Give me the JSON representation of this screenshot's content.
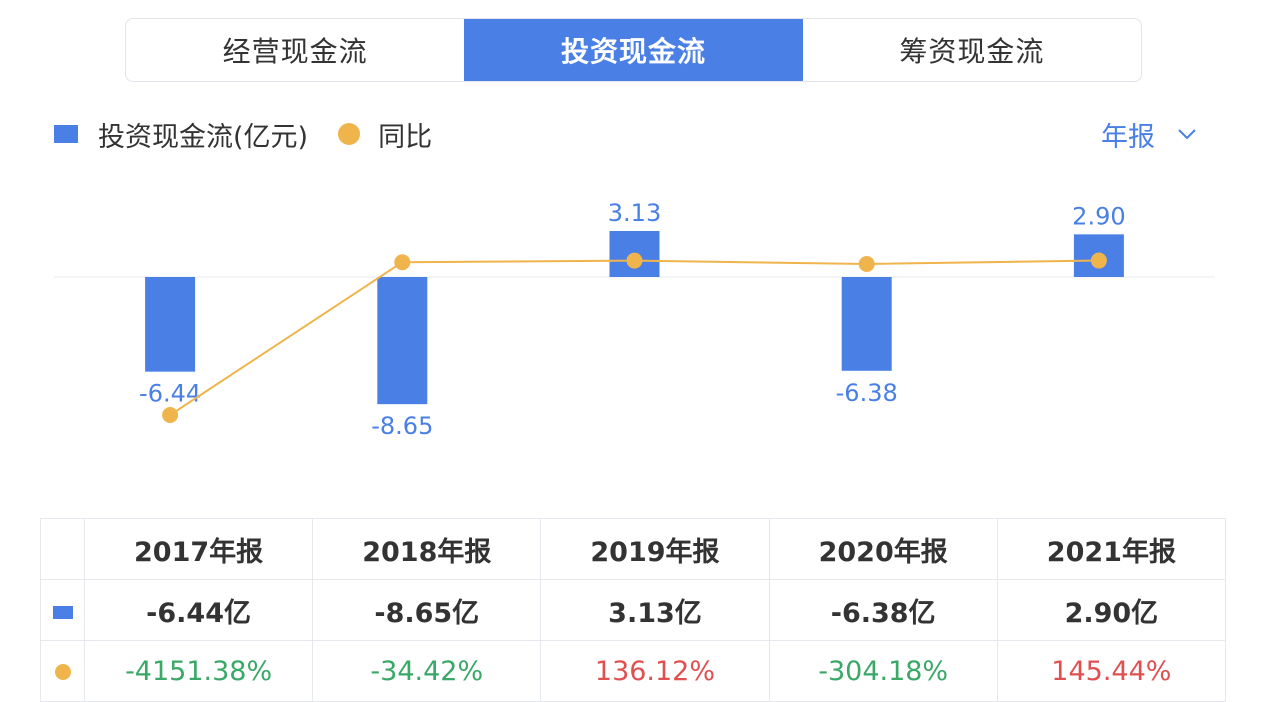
{
  "tabs": [
    {
      "label": "经营现金流",
      "active": false
    },
    {
      "label": "投资现金流",
      "active": true
    },
    {
      "label": "筹资现金流",
      "active": false
    }
  ],
  "legend": {
    "bar_label": "投资现金流(亿元)",
    "line_label": "同比"
  },
  "period_selector": {
    "label": "年报",
    "icon": "chevron-down-icon"
  },
  "colors": {
    "bar": "#4a7fe6",
    "line": "#f0b44c",
    "positive": "#e05050",
    "negative": "#3aa867",
    "label": "#4a7fe6"
  },
  "chart_data": {
    "type": "bar",
    "categories": [
      "2017年报",
      "2018年报",
      "2019年报",
      "2020年报",
      "2021年报"
    ],
    "series": [
      {
        "name": "投资现金流(亿元)",
        "type": "bar",
        "values": [
          -6.44,
          -8.65,
          3.13,
          -6.38,
          2.9
        ],
        "labels": [
          "-6.44",
          "-8.65",
          "3.13",
          "-6.38",
          "2.90"
        ]
      },
      {
        "name": "同比",
        "type": "line",
        "values": [
          -4151.38,
          -34.42,
          136.12,
          -304.18,
          145.44
        ]
      }
    ]
  },
  "table": {
    "headers": [
      "2017年报",
      "2018年报",
      "2019年报",
      "2020年报",
      "2021年报"
    ],
    "values": [
      "-6.44亿",
      "-8.65亿",
      "3.13亿",
      "-6.38亿",
      "2.90亿"
    ],
    "yoy": [
      "-4151.38%",
      "-34.42%",
      "136.12%",
      "-304.18%",
      "145.44%"
    ]
  }
}
